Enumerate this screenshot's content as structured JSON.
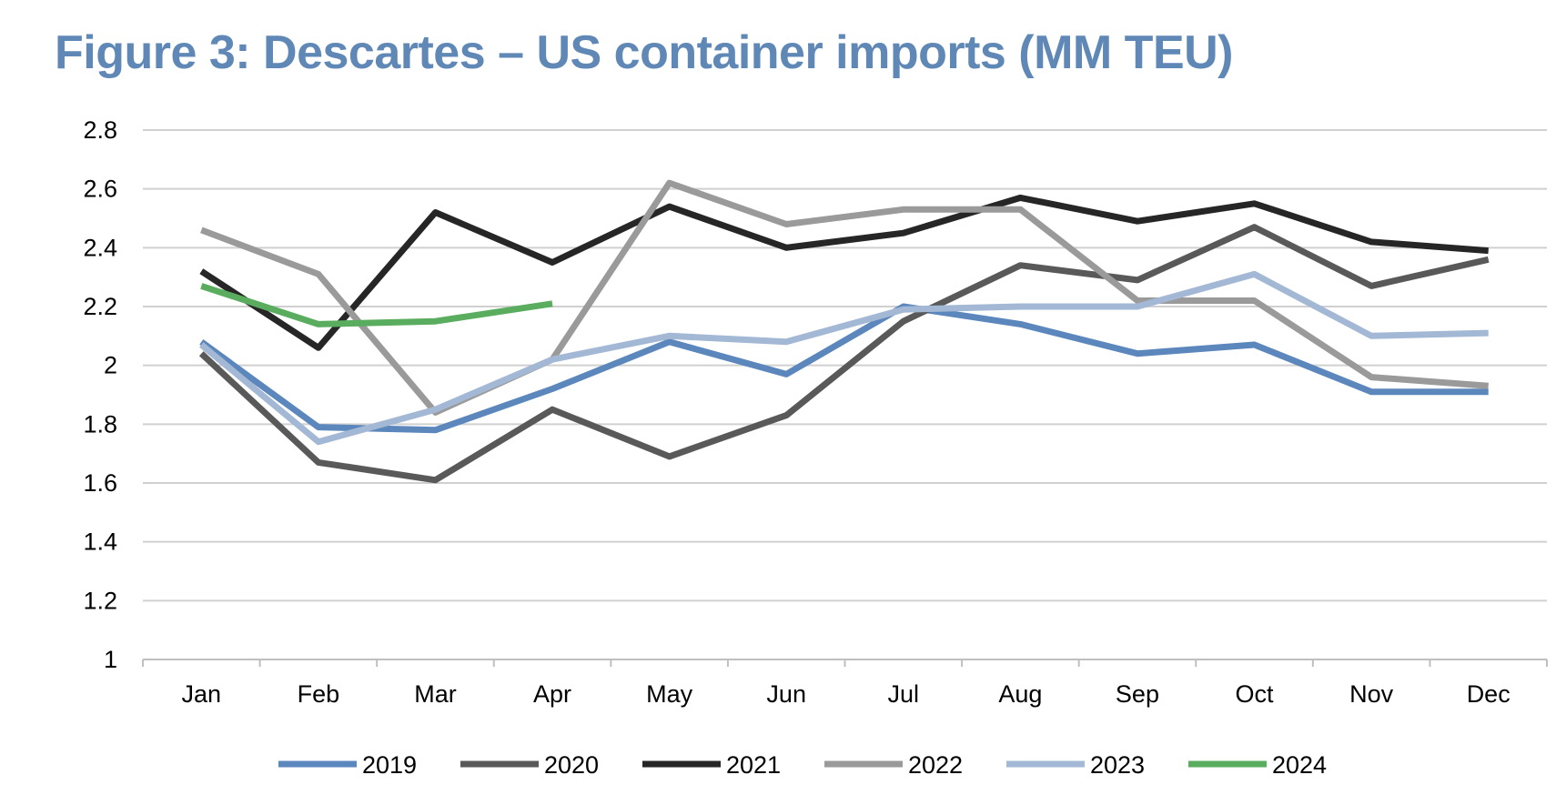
{
  "title": "Figure 3: Descartes – US container imports (MM TEU)",
  "chart_data": {
    "type": "line",
    "title": "Figure 3: Descartes – US container imports (MM TEU)",
    "xlabel": "",
    "ylabel": "",
    "categories": [
      "Jan",
      "Feb",
      "Mar",
      "Apr",
      "May",
      "Jun",
      "Jul",
      "Aug",
      "Sep",
      "Oct",
      "Nov",
      "Dec"
    ],
    "ylim": [
      1,
      2.8
    ],
    "yticks": [
      "1",
      "1.2",
      "1.4",
      "1.6",
      "1.8",
      "2",
      "2.2",
      "2.4",
      "2.6",
      "2.8"
    ],
    "grid": true,
    "legend_position": "bottom",
    "series": [
      {
        "name": "2019",
        "color": "#5b87bc",
        "values": [
          2.08,
          1.79,
          1.78,
          1.92,
          2.08,
          1.97,
          2.2,
          2.14,
          2.04,
          2.07,
          1.91,
          1.91
        ]
      },
      {
        "name": "2020",
        "color": "#595959",
        "values": [
          2.04,
          1.67,
          1.61,
          1.85,
          1.69,
          1.83,
          2.15,
          2.34,
          2.29,
          2.47,
          2.27,
          2.36
        ]
      },
      {
        "name": "2021",
        "color": "#262626",
        "values": [
          2.32,
          2.06,
          2.52,
          2.35,
          2.54,
          2.4,
          2.45,
          2.57,
          2.49,
          2.55,
          2.42,
          2.39
        ]
      },
      {
        "name": "2022",
        "color": "#9a9a9a",
        "values": [
          2.46,
          2.31,
          1.84,
          2.02,
          2.62,
          2.48,
          2.53,
          2.53,
          2.22,
          2.22,
          1.96,
          1.93
        ]
      },
      {
        "name": "2023",
        "color": "#a3b8d4",
        "values": [
          2.07,
          1.74,
          1.85,
          2.02,
          2.1,
          2.08,
          2.19,
          2.2,
          2.2,
          2.31,
          2.1,
          2.11
        ]
      },
      {
        "name": "2024",
        "color": "#5aad5e",
        "values": [
          2.27,
          2.14,
          2.15,
          2.21,
          null,
          null,
          null,
          null,
          null,
          null,
          null,
          null
        ]
      }
    ]
  }
}
